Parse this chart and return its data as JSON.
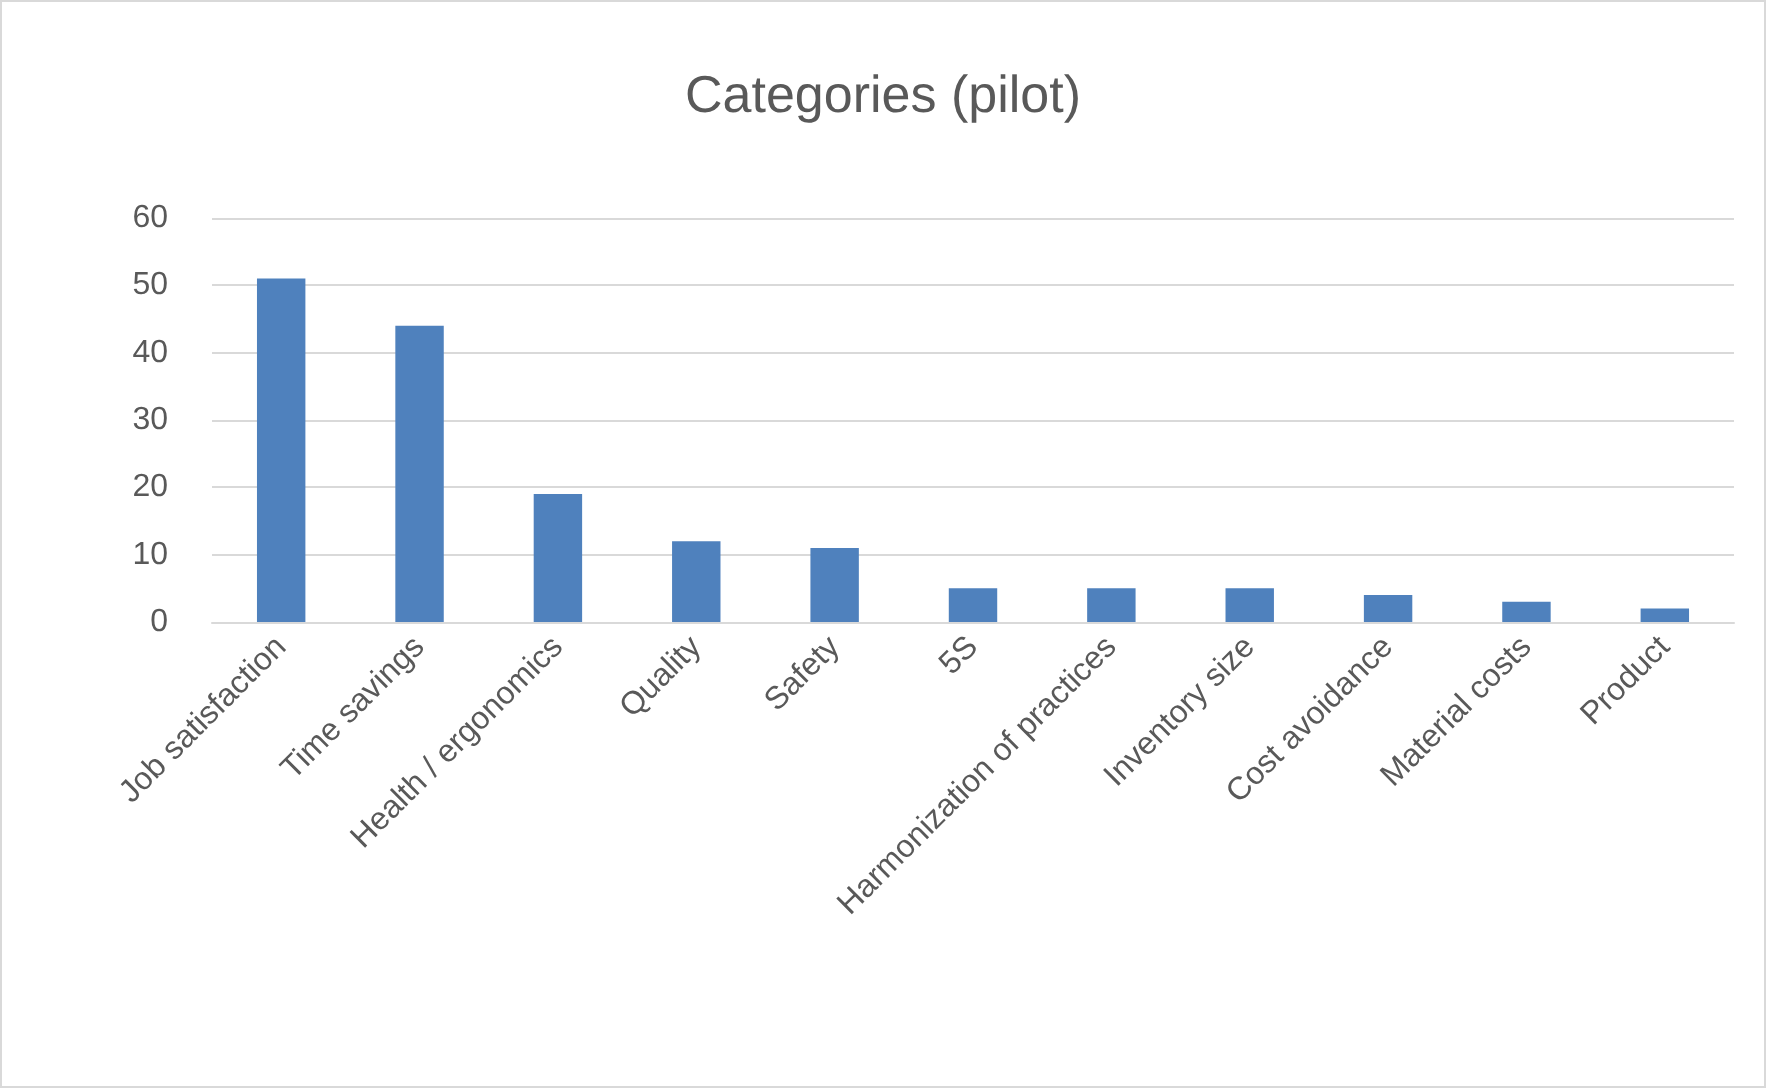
{
  "chart_data": {
    "type": "bar",
    "title": "Categories (pilot)",
    "categories": [
      "Job satisfaction",
      "Time savings",
      "Health / ergonomics",
      "Quality",
      "Safety",
      "5S",
      "Harmonization of practices",
      "Inventory size",
      "Cost avoidance",
      "Material costs",
      "Product"
    ],
    "values": [
      51,
      44,
      19,
      12,
      11,
      5,
      5,
      5,
      4,
      3,
      2
    ],
    "color": "#4f81bd",
    "ylim": [
      0,
      60
    ],
    "yticks": [
      0,
      10,
      20,
      30,
      40,
      50,
      60
    ],
    "grid": "y"
  }
}
